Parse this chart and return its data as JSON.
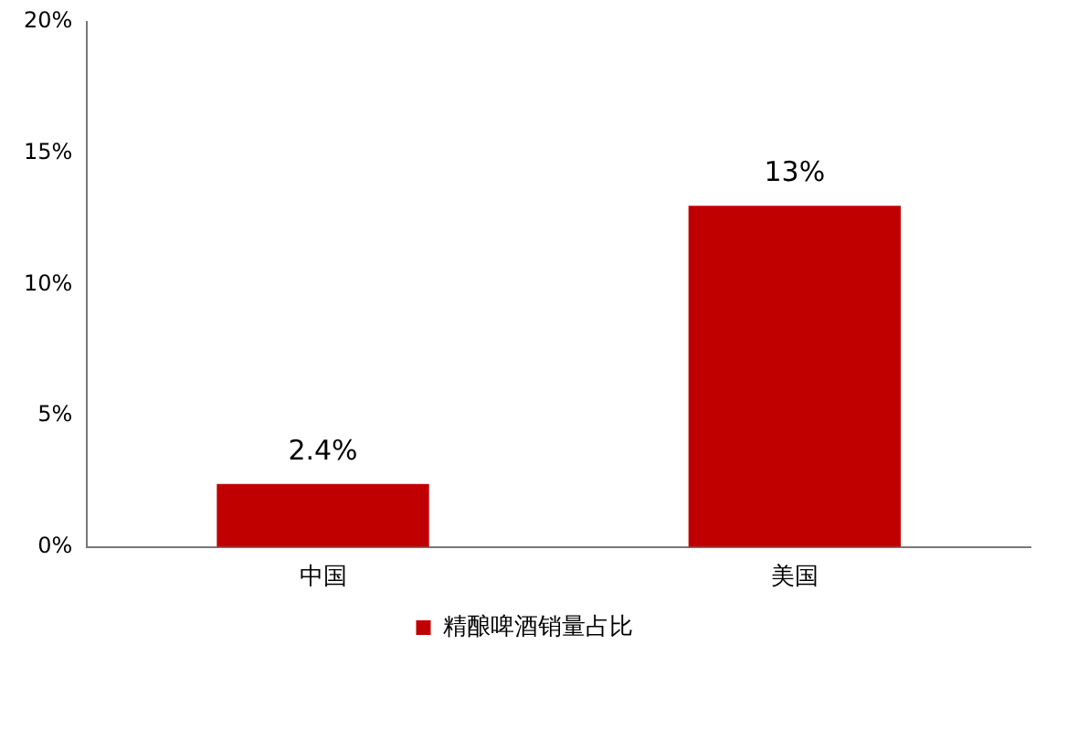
{
  "chart_data": {
    "type": "bar",
    "categories": [
      "中国",
      "美国"
    ],
    "series": [
      {
        "name": "精酿啤酒销量占比",
        "color": "#c00000",
        "values": [
          2.4,
          13
        ],
        "value_labels": [
          "2.4%",
          "13%"
        ]
      }
    ],
    "ylim": [
      0,
      20
    ],
    "yticks": [
      {
        "value": 0,
        "label": "0%"
      },
      {
        "value": 5,
        "label": "5%"
      },
      {
        "value": 10,
        "label": "10%"
      },
      {
        "value": 15,
        "label": "15%"
      },
      {
        "value": 20,
        "label": "20%"
      }
    ],
    "grid": false,
    "legend": "bottom"
  }
}
